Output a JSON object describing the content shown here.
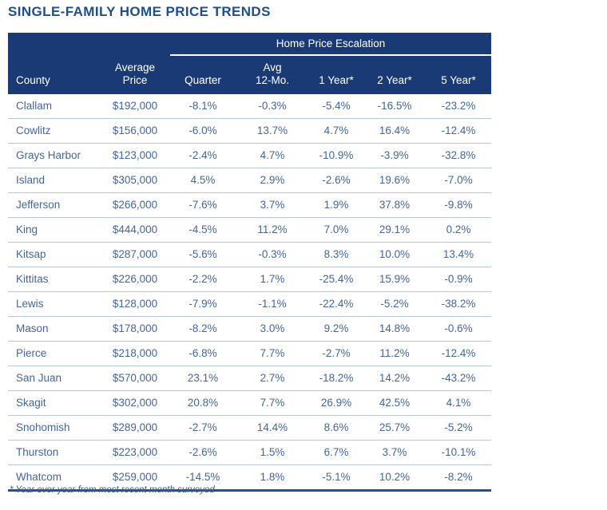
{
  "title": "SINGLE-FAMILY HOME PRICE TRENDS",
  "footnote": "* Year over year from most recent month surveyed",
  "colors": {
    "header_bg": "#1a3a76",
    "header_text": "#ffffff",
    "title_text": "#1e4e8f",
    "body_text": "#44659c",
    "row_divider": "#b7c6dc",
    "bottom_rule": "#27508f"
  },
  "table": {
    "group_header": "Home Price Escalation",
    "columns": [
      {
        "key": "county",
        "label": "County"
      },
      {
        "key": "avg_price",
        "label": "Average\nPrice"
      },
      {
        "key": "quarter",
        "label": "Quarter"
      },
      {
        "key": "avg_12mo",
        "label": "Avg\n12-Mo."
      },
      {
        "key": "year1",
        "label": "1 Year*"
      },
      {
        "key": "year2",
        "label": "2 Year*"
      },
      {
        "key": "year5",
        "label": "5 Year*"
      }
    ],
    "rows": [
      {
        "county": "Clallam",
        "avg_price": "$192,000",
        "quarter": "-8.1%",
        "avg_12mo": "-0.3%",
        "year1": "-5.4%",
        "year2": "-16.5%",
        "year5": "-23.2%"
      },
      {
        "county": "Cowlitz",
        "avg_price": "$156,000",
        "quarter": "-6.0%",
        "avg_12mo": "13.7%",
        "year1": "4.7%",
        "year2": "16.4%",
        "year5": "-12.4%"
      },
      {
        "county": "Grays Harbor",
        "avg_price": "$123,000",
        "quarter": "-2.4%",
        "avg_12mo": "4.7%",
        "year1": "-10.9%",
        "year2": "-3.9%",
        "year5": "-32.8%"
      },
      {
        "county": "Island",
        "avg_price": "$305,000",
        "quarter": "4.5%",
        "avg_12mo": "2.9%",
        "year1": "-2.6%",
        "year2": "19.6%",
        "year5": "-7.0%"
      },
      {
        "county": "Jefferson",
        "avg_price": "$266,000",
        "quarter": "-7.6%",
        "avg_12mo": "3.7%",
        "year1": "1.9%",
        "year2": "37.8%",
        "year5": "-9.8%"
      },
      {
        "county": "King",
        "avg_price": "$444,000",
        "quarter": "-4.5%",
        "avg_12mo": "11.2%",
        "year1": "7.0%",
        "year2": "29.1%",
        "year5": "0.2%"
      },
      {
        "county": "Kitsap",
        "avg_price": "$287,000",
        "quarter": "-5.6%",
        "avg_12mo": "-0.3%",
        "year1": "8.3%",
        "year2": "10.0%",
        "year5": "13.4%"
      },
      {
        "county": "Kittitas",
        "avg_price": "$226,000",
        "quarter": "-2.2%",
        "avg_12mo": "1.7%",
        "year1": "-25.4%",
        "year2": "15.9%",
        "year5": "-0.9%"
      },
      {
        "county": "Lewis",
        "avg_price": "$128,000",
        "quarter": "-7.9%",
        "avg_12mo": "-1.1%",
        "year1": "-22.4%",
        "year2": "-5.2%",
        "year5": "-38.2%"
      },
      {
        "county": "Mason",
        "avg_price": "$178,000",
        "quarter": "-8.2%",
        "avg_12mo": "3.0%",
        "year1": "9.2%",
        "year2": "14.8%",
        "year5": "-0.6%"
      },
      {
        "county": "Pierce",
        "avg_price": "$218,000",
        "quarter": "-6.8%",
        "avg_12mo": "7.7%",
        "year1": "-2.7%",
        "year2": "11.2%",
        "year5": "-12.4%"
      },
      {
        "county": "San Juan",
        "avg_price": "$570,000",
        "quarter": "23.1%",
        "avg_12mo": "2.7%",
        "year1": "-18.2%",
        "year2": "14.2%",
        "year5": "-43.2%"
      },
      {
        "county": "Skagit",
        "avg_price": "$302,000",
        "quarter": "20.8%",
        "avg_12mo": "7.7%",
        "year1": "26.9%",
        "year2": "42.5%",
        "year5": "4.1%"
      },
      {
        "county": "Snohomish",
        "avg_price": "$289,000",
        "quarter": "-2.7%",
        "avg_12mo": "14.4%",
        "year1": "8.6%",
        "year2": "25.7%",
        "year5": "-5.2%"
      },
      {
        "county": "Thurston",
        "avg_price": "$223,000",
        "quarter": "-2.6%",
        "avg_12mo": "1.5%",
        "year1": "6.7%",
        "year2": "3.7%",
        "year5": "-10.1%"
      },
      {
        "county": "Whatcom",
        "avg_price": "$259,000",
        "quarter": "-14.5%",
        "avg_12mo": "1.8%",
        "year1": "-5.1%",
        "year2": "10.2%",
        "year5": "-8.2%"
      }
    ]
  }
}
